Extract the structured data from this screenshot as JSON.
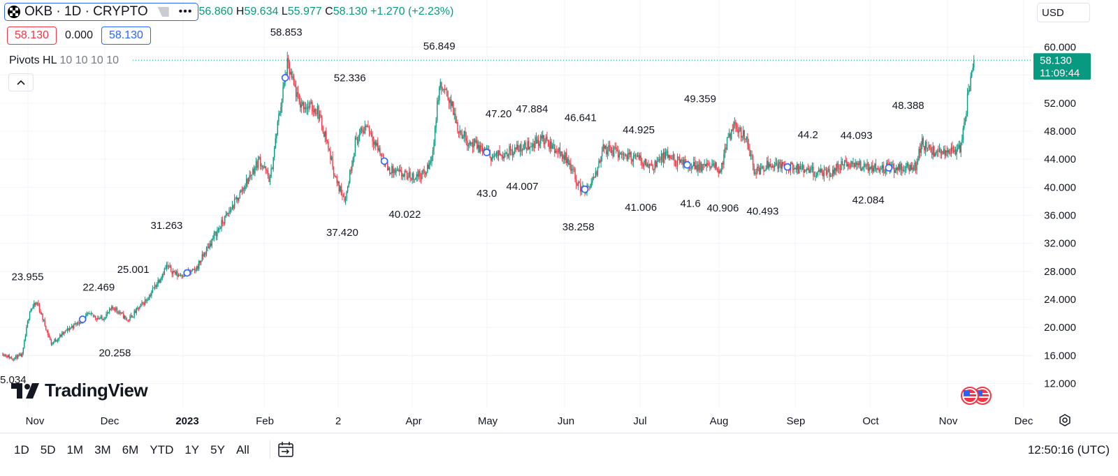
{
  "header": {
    "symbol_title": "OKB · 1D · CRYPTO",
    "ohlc": [
      {
        "key": "",
        "value": "56.860"
      },
      {
        "key": "H",
        "value": "59.634"
      },
      {
        "key": "L",
        "value": "55.977"
      },
      {
        "key": "C",
        "value": "58.130"
      }
    ],
    "change": "+1.270 (+2.23%)"
  },
  "price_boxes": {
    "sell": "58.130",
    "spread": "0.000",
    "buy": "58.130"
  },
  "indicator": {
    "name": "Pivots HL",
    "params": "10 10 10 10"
  },
  "currency": "USD",
  "watermark": "TradingView",
  "time_ranges": [
    "1D",
    "5D",
    "1M",
    "3M",
    "6M",
    "YTD",
    "1Y",
    "5Y",
    "All"
  ],
  "clock": "12:50:16 (UTC)",
  "colors": {
    "up": "#089981",
    "down": "#f23645",
    "accent": "#2962ff"
  },
  "icons": [
    "okb-logo-icon",
    "flag-icon",
    "more-dots-icon",
    "chevron-up-icon",
    "tradingview-logo-icon",
    "date-range-icon",
    "gear-icon",
    "us-flag-icon"
  ],
  "chart_data": {
    "type": "candlestick",
    "ylim": [
      9.5,
      61.5
    ],
    "y_ticks": [
      "60.000",
      "52.000",
      "48.000",
      "44.000",
      "40.000",
      "36.000",
      "32.000",
      "28.000",
      "24.000",
      "20.000",
      "16.000",
      "12.000"
    ],
    "x_ticks": [
      "Nov",
      "Dec",
      "2023",
      "Feb",
      "2",
      "Apr",
      "May",
      "Jun",
      "Jul",
      "Aug",
      "Sep",
      "Oct",
      "Nov",
      "Dec"
    ],
    "last_price": {
      "price": "58.130",
      "countdown": "11:09:44"
    },
    "anchors": [
      [
        0,
        16.3
      ],
      [
        8,
        15.6
      ],
      [
        18,
        16.0
      ],
      [
        25,
        22.5
      ],
      [
        32,
        23.5
      ],
      [
        45,
        17.7
      ],
      [
        62,
        19.9
      ],
      [
        80,
        21.8
      ],
      [
        92,
        21.2
      ],
      [
        103,
        22.9
      ],
      [
        116,
        21.0
      ],
      [
        135,
        24.3
      ],
      [
        152,
        28.7
      ],
      [
        162,
        27.5
      ],
      [
        178,
        28.0
      ],
      [
        196,
        33.0
      ],
      [
        218,
        38.5
      ],
      [
        238,
        44.0
      ],
      [
        248,
        41.0
      ],
      [
        256,
        50.0
      ],
      [
        264,
        57.5
      ],
      [
        275,
        52.0
      ],
      [
        292,
        51.0
      ],
      [
        300,
        47.0
      ],
      [
        310,
        40.5
      ],
      [
        318,
        38.4
      ],
      [
        327,
        46.5
      ],
      [
        338,
        49.0
      ],
      [
        345,
        46.5
      ],
      [
        358,
        42.5
      ],
      [
        370,
        41.8
      ],
      [
        380,
        41.5
      ],
      [
        392,
        42.0
      ],
      [
        398,
        44.0
      ],
      [
        405,
        54.5
      ],
      [
        415,
        52.5
      ],
      [
        422,
        48.5
      ],
      [
        432,
        46.5
      ],
      [
        446,
        45.3
      ],
      [
        455,
        44.3
      ],
      [
        466,
        45.0
      ],
      [
        485,
        45.8
      ],
      [
        500,
        46.9
      ],
      [
        515,
        45.2
      ],
      [
        525,
        43.8
      ],
      [
        535,
        40.0
      ],
      [
        542,
        39.6
      ],
      [
        550,
        41.5
      ],
      [
        556,
        45.5
      ],
      [
        570,
        45.0
      ],
      [
        590,
        44.0
      ],
      [
        602,
        43.0
      ],
      [
        615,
        44.5
      ],
      [
        630,
        43.3
      ],
      [
        645,
        43.0
      ],
      [
        660,
        42.9
      ],
      [
        666,
        42.5
      ],
      [
        672,
        46.5
      ],
      [
        680,
        48.8
      ],
      [
        690,
        47.0
      ],
      [
        698,
        42.0
      ],
      [
        710,
        43.5
      ],
      [
        725,
        43.0
      ],
      [
        740,
        42.5
      ],
      [
        752,
        42.2
      ],
      [
        765,
        41.8
      ],
      [
        780,
        43.3
      ],
      [
        800,
        43.0
      ],
      [
        820,
        42.8
      ],
      [
        838,
        42.7
      ],
      [
        848,
        43.2
      ],
      [
        852,
        46.5
      ],
      [
        860,
        45.2
      ],
      [
        870,
        44.8
      ],
      [
        880,
        45.5
      ],
      [
        888,
        45.3
      ],
      [
        892,
        48.5
      ],
      [
        895,
        52.5
      ],
      [
        899,
        56.8
      ],
      [
        901,
        58.13
      ]
    ],
    "pivots_high": [
      {
        "x": 23,
        "value": "23.955"
      },
      {
        "x": 89,
        "value": "22.469"
      },
      {
        "x": 121,
        "value": "25.001"
      },
      {
        "x": 152,
        "value": "31.263"
      },
      {
        "x": 263,
        "value": "58.853"
      },
      {
        "x": 322,
        "value": "52.336"
      },
      {
        "x": 405,
        "value": "56.849"
      },
      {
        "x": 460,
        "value": "47.20"
      },
      {
        "x": 491,
        "value": "47.884"
      },
      {
        "x": 536,
        "value": "46.641"
      },
      {
        "x": 590,
        "value": "44.925"
      },
      {
        "x": 647,
        "value": "49.359"
      },
      {
        "x": 747,
        "value": "44.2"
      },
      {
        "x": 792,
        "value": "44.093"
      },
      {
        "x": 840,
        "value": "48.388"
      }
    ],
    "pivots_low": [
      {
        "x": 0,
        "value": "5.034"
      },
      {
        "x": 104,
        "value": "20.258"
      },
      {
        "x": 315,
        "value": "37.420"
      },
      {
        "x": 373,
        "value": "40.022"
      },
      {
        "x": 449,
        "value": "43.0"
      },
      {
        "x": 482,
        "value": "44.007"
      },
      {
        "x": 534,
        "value": "38.258"
      },
      {
        "x": 592,
        "value": "41.006"
      },
      {
        "x": 638,
        "value": "41.6"
      },
      {
        "x": 668,
        "value": "40.906"
      },
      {
        "x": 705,
        "value": "40.493"
      },
      {
        "x": 803,
        "value": "42.084"
      }
    ],
    "markers": [
      74,
      171,
      262,
      354,
      449,
      540,
      635,
      728,
      822
    ]
  }
}
